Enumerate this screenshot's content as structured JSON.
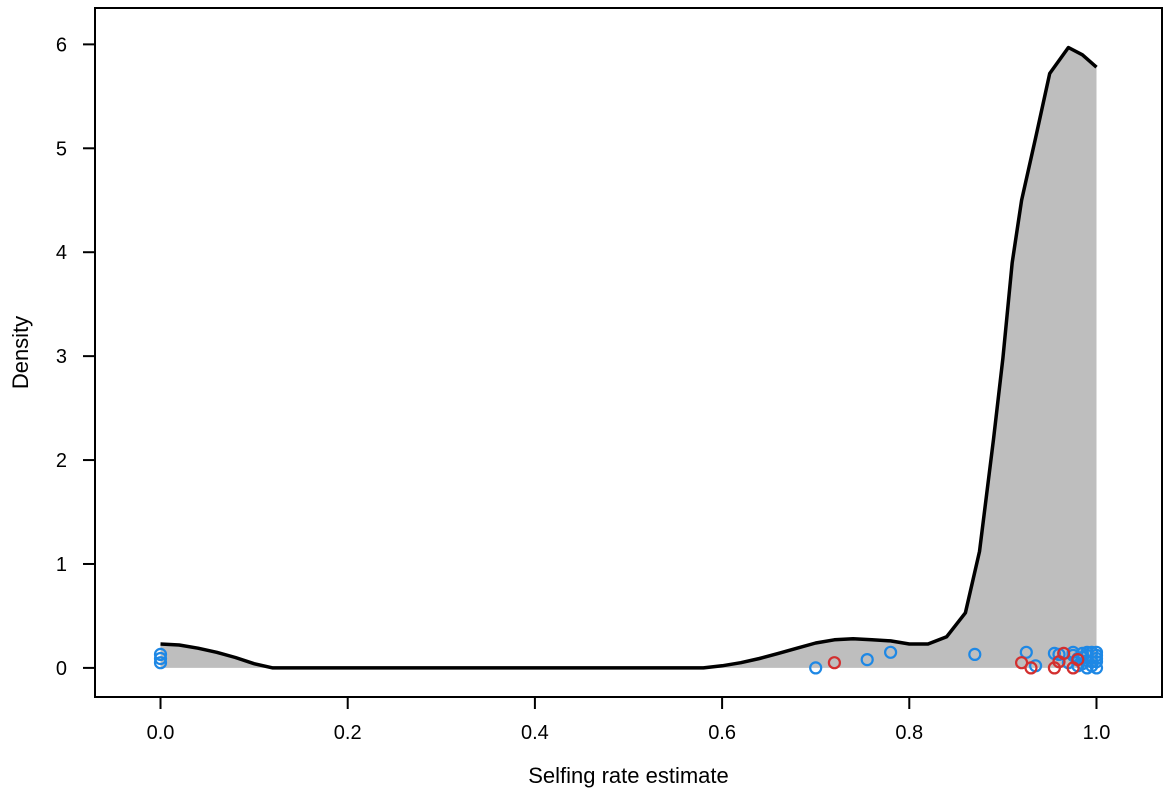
{
  "chart_data": {
    "type": "area",
    "title": "",
    "xlabel": "Selfing rate estimate",
    "ylabel": "Density",
    "xlim": [
      -0.07,
      1.07
    ],
    "ylim": [
      -0.28,
      6.35
    ],
    "xticks": [
      0.0,
      0.2,
      0.4,
      0.6,
      0.8,
      1.0
    ],
    "xtick_labels": [
      "0.0",
      "0.2",
      "0.4",
      "0.6",
      "0.8",
      "1.0"
    ],
    "yticks": [
      0,
      1,
      2,
      3,
      4,
      5,
      6
    ],
    "ytick_labels": [
      "0",
      "1",
      "2",
      "3",
      "4",
      "5",
      "6"
    ],
    "grid": false,
    "density": {
      "fill_color": "#bebebe",
      "line_color": "#000000",
      "x": [
        0.0,
        0.02,
        0.04,
        0.06,
        0.08,
        0.1,
        0.12,
        0.2,
        0.3,
        0.4,
        0.5,
        0.58,
        0.6,
        0.62,
        0.64,
        0.66,
        0.68,
        0.7,
        0.72,
        0.74,
        0.76,
        0.78,
        0.8,
        0.82,
        0.84,
        0.86,
        0.875,
        0.89,
        0.9,
        0.91,
        0.92,
        0.935,
        0.95,
        0.97,
        0.985,
        1.0
      ],
      "y": [
        0.23,
        0.22,
        0.19,
        0.15,
        0.1,
        0.04,
        0.0,
        0.0,
        0.0,
        0.0,
        0.0,
        0.0,
        0.02,
        0.05,
        0.09,
        0.14,
        0.19,
        0.24,
        0.27,
        0.28,
        0.27,
        0.26,
        0.23,
        0.23,
        0.3,
        0.53,
        1.12,
        2.2,
        2.98,
        3.9,
        4.5,
        5.1,
        5.72,
        5.97,
        5.9,
        5.78
      ]
    },
    "points": {
      "marker": "open-circle",
      "series": [
        {
          "color": "#1e88e5",
          "x": [
            0.0,
            0.0,
            0.0,
            0.7,
            0.755,
            0.78,
            0.87,
            0.925,
            0.935,
            0.955,
            0.96,
            0.97,
            0.975,
            0.98,
            0.985,
            0.99,
            0.99,
            0.995,
            1.0,
            1.0,
            1.0,
            0.98,
            0.985,
            0.99,
            0.995,
            1.0,
            0.975,
            0.99,
            1.0,
            0.985,
            0.995
          ],
          "y": [
            0.05,
            0.09,
            0.13,
            0.0,
            0.08,
            0.15,
            0.13,
            0.15,
            0.02,
            0.14,
            0.13,
            0.05,
            0.15,
            0.02,
            0.1,
            0.0,
            0.15,
            0.06,
            0.12,
            0.0,
            0.06,
            0.09,
            0.04,
            0.12,
            0.15,
            0.09,
            0.12,
            0.07,
            0.15,
            0.14,
            0.02
          ]
        },
        {
          "color": "#d32f2f",
          "x": [
            0.72,
            0.92,
            0.93,
            0.955,
            0.96,
            0.965,
            0.975,
            0.98
          ],
          "y": [
            0.05,
            0.05,
            0.0,
            0.0,
            0.06,
            0.14,
            0.0,
            0.08
          ]
        }
      ]
    }
  }
}
